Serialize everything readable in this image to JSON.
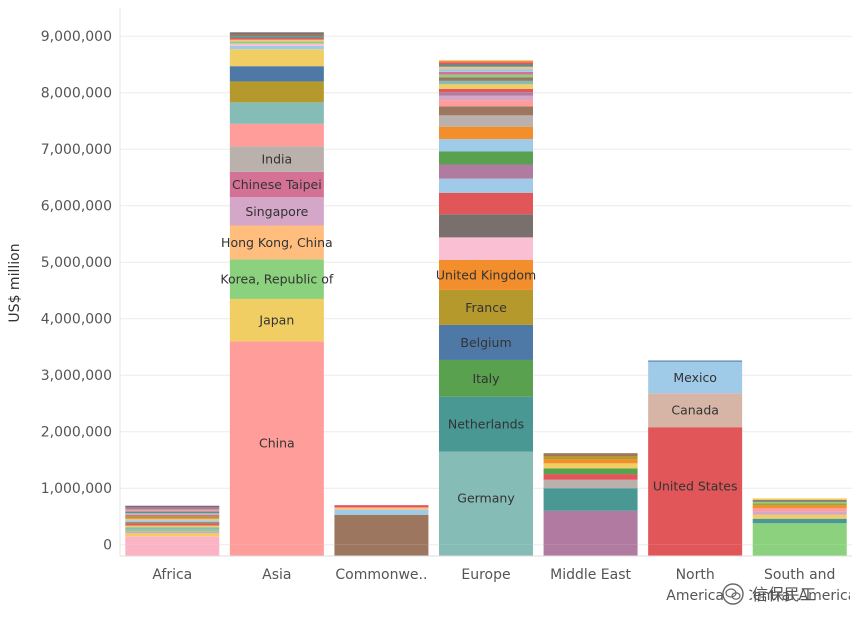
{
  "chart_data": {
    "type": "bar",
    "stacked": true,
    "ylabel": "US$ million",
    "ylim": [
      -200000,
      9500000
    ],
    "yticks": [
      0,
      1000000,
      2000000,
      3000000,
      4000000,
      5000000,
      6000000,
      7000000,
      8000000,
      9000000
    ],
    "ytick_labels": [
      "0",
      "1,000,000",
      "2,000,000",
      "3,000,000",
      "4,000,000",
      "5,000,000",
      "6,000,000",
      "7,000,000",
      "8,000,000",
      "9,000,000"
    ],
    "gridlines": true,
    "categories": [
      {
        "label": "Africa",
        "wrap": false,
        "segments": [
          {
            "value": 150000,
            "color": "#fbb4c4"
          },
          {
            "value": 50000,
            "color": "#f2cf5b"
          },
          {
            "value": 40000,
            "color": "#d4a6c8"
          },
          {
            "value": 30000,
            "color": "#8cd17d"
          },
          {
            "value": 40000,
            "color": "#86bcb6"
          },
          {
            "value": 30000,
            "color": "#f1ce63"
          },
          {
            "value": 30000,
            "color": "#e15759"
          },
          {
            "value": 30000,
            "color": "#9d7660"
          },
          {
            "value": 30000,
            "color": "#a0cbe8"
          },
          {
            "value": 30000,
            "color": "#ffbe7d"
          },
          {
            "value": 40000,
            "color": "#b6992d"
          },
          {
            "value": 30000,
            "color": "#d37295"
          },
          {
            "value": 30000,
            "color": "#bab0ac"
          },
          {
            "value": 30000,
            "color": "#499894"
          },
          {
            "value": 30000,
            "color": "#ff9d9a"
          },
          {
            "value": 40000,
            "color": "#b07aa1"
          },
          {
            "value": 30000,
            "color": "#79706e"
          }
        ]
      },
      {
        "label": "Asia",
        "wrap": false,
        "segments": [
          {
            "value": 3600000,
            "color": "#ff9d9a",
            "label": "China"
          },
          {
            "value": 750000,
            "color": "#f1ce63",
            "label": "Japan"
          },
          {
            "value": 700000,
            "color": "#8cd17d",
            "label": "Korea, Republic of"
          },
          {
            "value": 600000,
            "color": "#ffbe7d",
            "label": "Hong Kong, China"
          },
          {
            "value": 500000,
            "color": "#d4a6c8",
            "label": "Singapore"
          },
          {
            "value": 450000,
            "color": "#d37295",
            "label": "Chinese Taipei"
          },
          {
            "value": 450000,
            "color": "#bab0ac",
            "label": "India"
          },
          {
            "value": 400000,
            "color": "#ff9d9a"
          },
          {
            "value": 380000,
            "color": "#86bcb6"
          },
          {
            "value": 370000,
            "color": "#b6992d"
          },
          {
            "value": 270000,
            "color": "#4e79a7"
          },
          {
            "value": 300000,
            "color": "#f1ce63"
          },
          {
            "value": 60000,
            "color": "#a0cbe8"
          },
          {
            "value": 40000,
            "color": "#fabfd2"
          },
          {
            "value": 40000,
            "color": "#8cd17d"
          },
          {
            "value": 30000,
            "color": "#ffbe7d"
          },
          {
            "value": 30000,
            "color": "#e15759"
          },
          {
            "value": 30000,
            "color": "#499894"
          },
          {
            "value": 40000,
            "color": "#9d7660"
          },
          {
            "value": 30000,
            "color": "#79706e"
          }
        ]
      },
      {
        "label": "Commonwe..",
        "wrap": false,
        "segments": [
          {
            "value": 530000,
            "color": "#9d7660"
          },
          {
            "value": 90000,
            "color": "#a0cbe8"
          },
          {
            "value": 40000,
            "color": "#ffbe7d"
          },
          {
            "value": 40000,
            "color": "#e15759"
          }
        ]
      },
      {
        "label": "Europe",
        "wrap": false,
        "segments": [
          {
            "value": 1650000,
            "color": "#86bcb6",
            "label": "Germany"
          },
          {
            "value": 970000,
            "color": "#499894",
            "label": "Netherlands"
          },
          {
            "value": 650000,
            "color": "#59a14f",
            "label": "Italy"
          },
          {
            "value": 620000,
            "color": "#4e79a7",
            "label": "Belgium"
          },
          {
            "value": 620000,
            "color": "#b6992d",
            "label": "France"
          },
          {
            "value": 530000,
            "color": "#f28e2b",
            "label": "United Kingdom"
          },
          {
            "value": 400000,
            "color": "#fabfd2"
          },
          {
            "value": 410000,
            "color": "#79706e"
          },
          {
            "value": 380000,
            "color": "#e15759"
          },
          {
            "value": 250000,
            "color": "#a0cbe8"
          },
          {
            "value": 250000,
            "color": "#b07aa1"
          },
          {
            "value": 230000,
            "color": "#59a14f"
          },
          {
            "value": 220000,
            "color": "#a0cbe8"
          },
          {
            "value": 220000,
            "color": "#f28e2b"
          },
          {
            "value": 200000,
            "color": "#bab0ac"
          },
          {
            "value": 160000,
            "color": "#9d7660"
          },
          {
            "value": 110000,
            "color": "#ff9d9a"
          },
          {
            "value": 80000,
            "color": "#d4a6c8"
          },
          {
            "value": 60000,
            "color": "#b07aa1"
          },
          {
            "value": 60000,
            "color": "#e15759"
          },
          {
            "value": 80000,
            "color": "#f1ce63"
          },
          {
            "value": 60000,
            "color": "#86bcb6"
          },
          {
            "value": 60000,
            "color": "#9d7660"
          },
          {
            "value": 50000,
            "color": "#8cd17d"
          },
          {
            "value": 50000,
            "color": "#d37295"
          },
          {
            "value": 50000,
            "color": "#a0cbe8"
          },
          {
            "value": 40000,
            "color": "#ffbe7d"
          },
          {
            "value": 40000,
            "color": "#499894"
          },
          {
            "value": 40000,
            "color": "#e15759"
          },
          {
            "value": 30000,
            "color": "#f28e2b"
          }
        ]
      },
      {
        "label": "Middle East",
        "wrap": false,
        "segments": [
          {
            "value": 600000,
            "color": "#b07aa1"
          },
          {
            "value": 400000,
            "color": "#499894"
          },
          {
            "value": 150000,
            "color": "#bab0ac"
          },
          {
            "value": 100000,
            "color": "#e15759"
          },
          {
            "value": 100000,
            "color": "#59a14f"
          },
          {
            "value": 90000,
            "color": "#f1ce63"
          },
          {
            "value": 70000,
            "color": "#f28e2b"
          },
          {
            "value": 60000,
            "color": "#b6992d"
          },
          {
            "value": 50000,
            "color": "#9d7660"
          }
        ]
      },
      {
        "label": "North America",
        "wrap": true,
        "segments": [
          {
            "value": 2080000,
            "color": "#e15759",
            "label": "United States"
          },
          {
            "value": 600000,
            "color": "#d7b5a6",
            "label": "Canada"
          },
          {
            "value": 560000,
            "color": "#a0cbe8",
            "label": "Mexico"
          },
          {
            "value": 20000,
            "color": "#4e79a7"
          }
        ]
      },
      {
        "label": "South and Central America",
        "wrap": true,
        "segments": [
          {
            "value": 380000,
            "color": "#8cd17d"
          },
          {
            "value": 80000,
            "color": "#499894"
          },
          {
            "value": 70000,
            "color": "#f1ce63"
          },
          {
            "value": 60000,
            "color": "#d4a6c8"
          },
          {
            "value": 60000,
            "color": "#ff9d9a"
          },
          {
            "value": 40000,
            "color": "#f28e2b"
          },
          {
            "value": 40000,
            "color": "#b6992d"
          },
          {
            "value": 30000,
            "color": "#8cd17d"
          },
          {
            "value": 30000,
            "color": "#79706e"
          },
          {
            "value": 30000,
            "color": "#f1ce63"
          }
        ]
      }
    ]
  },
  "watermark": {
    "icon": "wechat-icon",
    "text": "信保民工"
  }
}
